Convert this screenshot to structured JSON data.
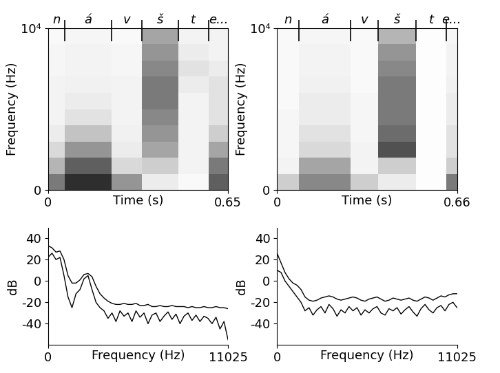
{
  "chart_data": [
    {
      "type": "heatmap",
      "x_label": "Time (s)",
      "y_label": "Frequency (Hz)",
      "xlim": [
        0,
        0.65
      ],
      "xticks": [
        0,
        0.65
      ],
      "ylim": [
        0,
        10000
      ],
      "yticks": [
        0,
        {
          "value": 10000,
          "label": "10⁴"
        }
      ],
      "zlim": [
        0,
        1
      ],
      "freq_bins": [
        0,
        1000,
        2000,
        3000,
        4000,
        5000,
        6000,
        7000,
        8000,
        9000,
        10000
      ],
      "segments": [
        {
          "label": "n",
          "start": 0,
          "end": 0.06,
          "values": [
            0.6,
            0.4,
            0.25,
            0.15,
            0.1,
            0.1,
            0.1,
            0.08,
            0.08,
            0.05
          ]
        },
        {
          "label": "á",
          "start": 0.06,
          "end": 0.23,
          "values": [
            0.85,
            0.7,
            0.5,
            0.35,
            0.2,
            0.15,
            0.12,
            0.1,
            0.1,
            0.08
          ]
        },
        {
          "label": "v",
          "start": 0.23,
          "end": 0.34,
          "values": [
            0.5,
            0.25,
            0.15,
            0.12,
            0.1,
            0.1,
            0.1,
            0.08,
            0.08,
            0.05
          ]
        },
        {
          "label": "š",
          "start": 0.34,
          "end": 0.47,
          "values": [
            0.15,
            0.3,
            0.45,
            0.5,
            0.55,
            0.6,
            0.6,
            0.55,
            0.5,
            0.45
          ]
        },
        {
          "label": "t",
          "start": 0.47,
          "end": 0.58,
          "values": [
            0.05,
            0.1,
            0.1,
            0.1,
            0.1,
            0.1,
            0.15,
            0.2,
            0.15,
            0.1
          ]
        },
        {
          "label": "e...",
          "start": 0.58,
          "end": 0.65,
          "values": [
            0.7,
            0.6,
            0.45,
            0.3,
            0.2,
            0.2,
            0.2,
            0.15,
            0.1,
            0.1
          ]
        }
      ]
    },
    {
      "type": "heatmap",
      "x_label": "Time (s)",
      "y_label": "Frequency (Hz)",
      "xlim": [
        0,
        0.66
      ],
      "xticks": [
        0,
        0.66
      ],
      "ylim": [
        0,
        10000
      ],
      "yticks": [
        0,
        {
          "value": 10000,
          "label": "10⁴"
        }
      ],
      "zlim": [
        0,
        1
      ],
      "freq_bins": [
        0,
        1000,
        2000,
        3000,
        4000,
        5000,
        6000,
        7000,
        8000,
        9000,
        10000
      ],
      "segments": [
        {
          "label": "n",
          "start": 0,
          "end": 0.08,
          "values": [
            0.3,
            0.1,
            0.08,
            0.08,
            0.08,
            0.05,
            0.05,
            0.05,
            0.05,
            0.05
          ]
        },
        {
          "label": "á",
          "start": 0.08,
          "end": 0.27,
          "values": [
            0.55,
            0.45,
            0.25,
            0.2,
            0.15,
            0.15,
            0.12,
            0.1,
            0.1,
            0.08
          ]
        },
        {
          "label": "v",
          "start": 0.27,
          "end": 0.37,
          "values": [
            0.3,
            0.1,
            0.1,
            0.08,
            0.08,
            0.08,
            0.05,
            0.05,
            0.05,
            0.05
          ]
        },
        {
          "label": "š",
          "start": 0.37,
          "end": 0.51,
          "values": [
            0.15,
            0.3,
            0.75,
            0.65,
            0.6,
            0.6,
            0.6,
            0.55,
            0.5,
            0.4
          ]
        },
        {
          "label": "t",
          "start": 0.51,
          "end": 0.62,
          "values": [
            0.02,
            0.02,
            0.02,
            0.02,
            0.02,
            0.02,
            0.02,
            0.02,
            0.02,
            0.02
          ]
        },
        {
          "label": "e...",
          "start": 0.62,
          "end": 0.66,
          "values": [
            0.6,
            0.3,
            0.2,
            0.2,
            0.15,
            0.15,
            0.12,
            0.1,
            0.1,
            0.08
          ]
        }
      ]
    },
    {
      "type": "line",
      "x_label": "Frequency (Hz)",
      "y_label": "dB",
      "xlim": [
        0,
        11025
      ],
      "xticks": [
        0,
        11025
      ],
      "ylim": [
        -60,
        50
      ],
      "yticks": [
        -40,
        -20,
        0,
        20,
        40
      ],
      "x": [
        0,
        245,
        490,
        735,
        980,
        1225,
        1470,
        1715,
        1960,
        2205,
        2450,
        2695,
        2940,
        3185,
        3430,
        3675,
        3920,
        4165,
        4410,
        4655,
        4900,
        5145,
        5390,
        5635,
        5880,
        6125,
        6370,
        6615,
        6860,
        7105,
        7350,
        7595,
        7840,
        8085,
        8330,
        8575,
        8820,
        9065,
        9310,
        9555,
        9800,
        10045,
        10290,
        10535,
        10780,
        11025
      ],
      "series": [
        {
          "color": "black",
          "values": [
            33,
            31,
            27,
            28,
            20,
            5,
            -2,
            -2,
            1,
            6,
            7,
            4,
            -5,
            -12,
            -16,
            -19,
            -21,
            -22,
            -22,
            -21,
            -22,
            -22,
            -21,
            -23,
            -23,
            -22,
            -24,
            -24,
            -23,
            -24,
            -24,
            -23,
            -24,
            -24,
            -24,
            -25,
            -24,
            -25,
            -25,
            -24,
            -25,
            -25,
            -24,
            -25,
            -25,
            -26
          ]
        },
        {
          "color": "black",
          "values": [
            22,
            26,
            20,
            22,
            5,
            -15,
            -25,
            -12,
            -8,
            2,
            5,
            -8,
            -20,
            -25,
            -28,
            -35,
            -30,
            -38,
            -28,
            -33,
            -30,
            -38,
            -28,
            -34,
            -30,
            -40,
            -32,
            -30,
            -38,
            -33,
            -29,
            -36,
            -31,
            -40,
            -33,
            -30,
            -37,
            -32,
            -38,
            -33,
            -35,
            -40,
            -34,
            -45,
            -38,
            -55
          ]
        }
      ]
    },
    {
      "type": "line",
      "x_label": "Frequency (Hz)",
      "y_label": "dB",
      "xlim": [
        0,
        11025
      ],
      "xticks": [
        0,
        11025
      ],
      "ylim": [
        -60,
        50
      ],
      "yticks": [
        -40,
        -20,
        0,
        20,
        40
      ],
      "x": [
        0,
        245,
        490,
        735,
        980,
        1225,
        1470,
        1715,
        1960,
        2205,
        2450,
        2695,
        2940,
        3185,
        3430,
        3675,
        3920,
        4165,
        4410,
        4655,
        4900,
        5145,
        5390,
        5635,
        5880,
        6125,
        6370,
        6615,
        6860,
        7105,
        7350,
        7595,
        7840,
        8085,
        8330,
        8575,
        8820,
        9065,
        9310,
        9555,
        9800,
        10045,
        10290,
        10535,
        10780,
        11025
      ],
      "series": [
        {
          "color": "black",
          "values": [
            26,
            17,
            8,
            2,
            -2,
            -4,
            -8,
            -15,
            -18,
            -19,
            -18,
            -16,
            -15,
            -14,
            -15,
            -17,
            -18,
            -17,
            -16,
            -15,
            -16,
            -18,
            -19,
            -17,
            -16,
            -15,
            -17,
            -19,
            -18,
            -16,
            -17,
            -18,
            -17,
            -16,
            -18,
            -19,
            -17,
            -15,
            -16,
            -18,
            -16,
            -14,
            -15,
            -13,
            -12,
            -12
          ]
        },
        {
          "color": "black",
          "values": [
            10,
            8,
            0,
            -5,
            -10,
            -15,
            -20,
            -28,
            -25,
            -32,
            -27,
            -24,
            -30,
            -22,
            -26,
            -33,
            -27,
            -30,
            -24,
            -28,
            -25,
            -32,
            -27,
            -30,
            -26,
            -24,
            -30,
            -32,
            -26,
            -28,
            -25,
            -31,
            -27,
            -24,
            -29,
            -33,
            -26,
            -22,
            -27,
            -30,
            -25,
            -23,
            -28,
            -22,
            -20,
            -25
          ]
        }
      ]
    }
  ]
}
